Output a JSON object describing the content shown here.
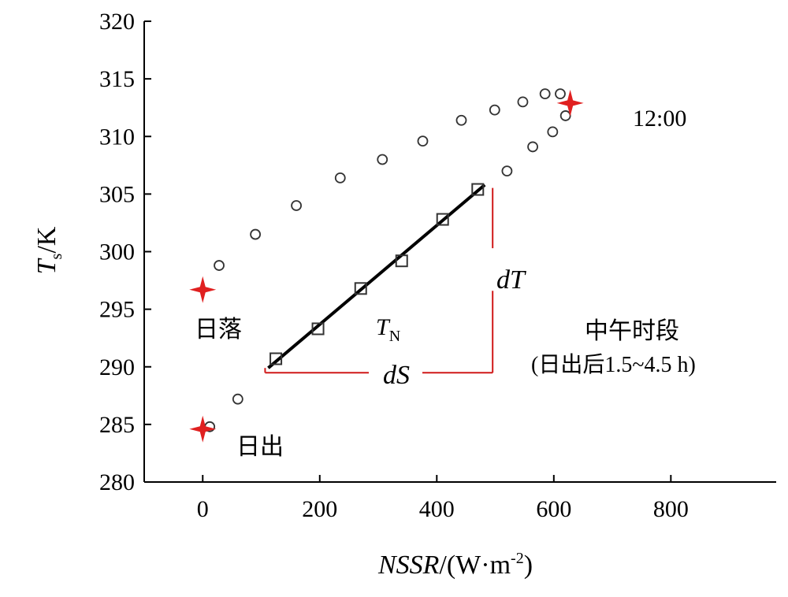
{
  "chart_data": {
    "type": "scatter",
    "xlabel_main": "NSSR",
    "xlabel_unit": "/(W·m",
    "xlabel_exp": "-2",
    "xlabel_close": ")",
    "ylabel_main": "T",
    "ylabel_sub": "s",
    "ylabel_unit": "/K",
    "xlim": [
      -100,
      980
    ],
    "ylim": [
      280,
      320
    ],
    "xticks": [
      0,
      200,
      400,
      600,
      800
    ],
    "xtick_labels": [
      "0",
      "200",
      "400",
      "600",
      "800"
    ],
    "yticks": [
      280,
      285,
      290,
      295,
      300,
      305,
      310,
      315,
      320
    ],
    "ytick_labels": [
      "280",
      "285",
      "290",
      "295",
      "300",
      "305",
      "310",
      "315",
      "320"
    ],
    "series": [
      {
        "marker": "circle",
        "points": [
          {
            "x": 28,
            "y": 298.8
          },
          {
            "x": 90,
            "y": 301.5
          },
          {
            "x": 160,
            "y": 304.0
          },
          {
            "x": 235,
            "y": 306.4
          },
          {
            "x": 307,
            "y": 308.0
          },
          {
            "x": 376,
            "y": 309.6
          },
          {
            "x": 442,
            "y": 311.4
          },
          {
            "x": 499,
            "y": 312.3
          },
          {
            "x": 547,
            "y": 313.0
          },
          {
            "x": 585,
            "y": 313.7
          },
          {
            "x": 611,
            "y": 313.7
          },
          {
            "x": 620,
            "y": 311.8
          },
          {
            "x": 598,
            "y": 310.4
          },
          {
            "x": 564,
            "y": 309.1
          },
          {
            "x": 520,
            "y": 307.0
          },
          {
            "x": 60,
            "y": 287.2
          },
          {
            "x": 12,
            "y": 284.8
          }
        ]
      },
      {
        "name": "T",
        "name_sub": "N",
        "marker": "square",
        "points": [
          {
            "x": 125,
            "y": 290.7
          },
          {
            "x": 197,
            "y": 293.3
          },
          {
            "x": 270,
            "y": 296.8
          },
          {
            "x": 340,
            "y": 299.2
          },
          {
            "x": 410,
            "y": 302.8
          },
          {
            "x": 470,
            "y": 305.4
          }
        ],
        "fit_line": [
          {
            "x": 112,
            "y": 289.9
          },
          {
            "x": 482,
            "y": 305.8
          }
        ]
      }
    ],
    "highlights": [
      {
        "label": "日落",
        "x": 0,
        "y": 296.7
      },
      {
        "label": "日出",
        "x": 0,
        "y": 284.6
      },
      {
        "label": "12:00",
        "x": 628,
        "y": 312.9
      }
    ],
    "dT_label": "dT",
    "dS_label": "dS",
    "period_label_line1": "中午时段",
    "period_label_line2": "(日出后1.5~4.5 h)",
    "colors": {
      "highlight": "#e02020",
      "guide": "#d01818",
      "marker": "#333333",
      "line": "#000000"
    }
  }
}
